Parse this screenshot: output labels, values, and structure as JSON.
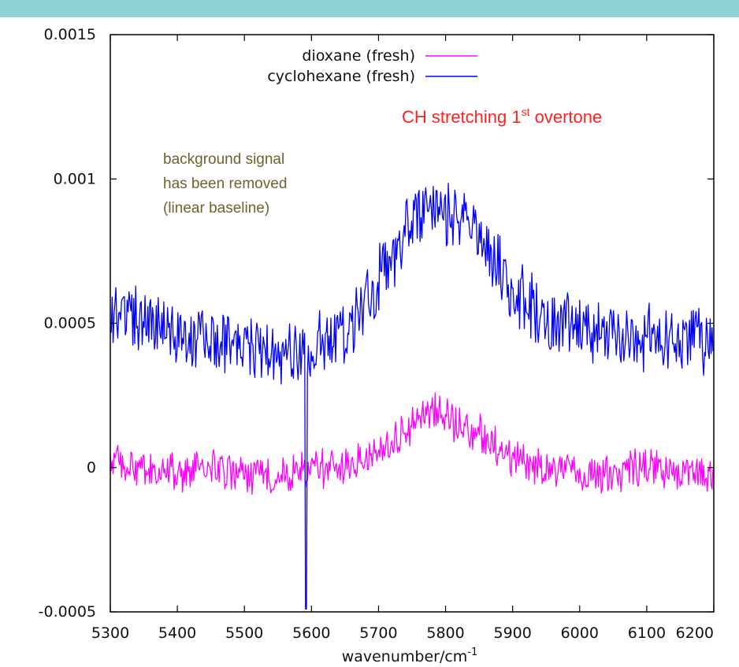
{
  "colors": {
    "top_bar": "#8fcfd6",
    "dioxane": "#ff00ff",
    "cyclohexane": "#0000ff",
    "annotation_red": "#ff2020",
    "annotation_olive": "#6b6330"
  },
  "chart_data": {
    "type": "line",
    "xlabel_base": "wavenumber/cm",
    "xlabel_sup": "-1",
    "ylabel": "",
    "xlim": [
      5300,
      6200
    ],
    "ylim": [
      -0.0005,
      0.0015
    ],
    "xticks": [
      "5300",
      "5400",
      "5500",
      "5600",
      "5700",
      "5800",
      "5900",
      "6000",
      "6100",
      "6200"
    ],
    "yticks": [
      "-0.0005",
      "0",
      "0.0005",
      "0.001",
      "0.0015"
    ],
    "grid": false,
    "legend_position": "top-right",
    "series": [
      {
        "name": "dioxane (fresh)",
        "color": "#ff00ff",
        "x": [
          5300,
          5350,
          5400,
          5450,
          5500,
          5550,
          5600,
          5650,
          5700,
          5750,
          5775,
          5800,
          5850,
          5900,
          5950,
          6000,
          6050,
          6100,
          6150,
          6200
        ],
        "y": [
          2e-05,
          -2e-05,
          -2e-05,
          0.0,
          -3e-05,
          -3e-05,
          0.0,
          0.0,
          5e-05,
          0.00015,
          0.0002,
          0.00017,
          0.00012,
          3e-05,
          0.0,
          -3e-05,
          -2e-05,
          0.0,
          -2e-05,
          -3e-05
        ]
      },
      {
        "name": "cyclohexane (fresh)",
        "color": "#0000ff",
        "x": [
          5300,
          5350,
          5400,
          5450,
          5500,
          5550,
          5600,
          5650,
          5700,
          5750,
          5775,
          5800,
          5850,
          5880,
          5900,
          5950,
          6000,
          6050,
          6100,
          6150,
          6200
        ],
        "y": [
          0.00055,
          0.0005,
          0.00048,
          0.00046,
          0.00043,
          0.0004,
          0.0004,
          0.00048,
          0.00065,
          0.00085,
          0.0009,
          0.00088,
          0.0008,
          0.0007,
          0.0006,
          0.00052,
          0.00048,
          0.00046,
          0.00045,
          0.00044,
          0.00043
        ]
      }
    ],
    "annotations": {
      "overtone_base": "CH stretching 1",
      "overtone_sup": "st",
      "overtone_tail": " overtone",
      "background": [
        "background signal",
        "has been removed",
        "(linear baseline)"
      ]
    }
  }
}
